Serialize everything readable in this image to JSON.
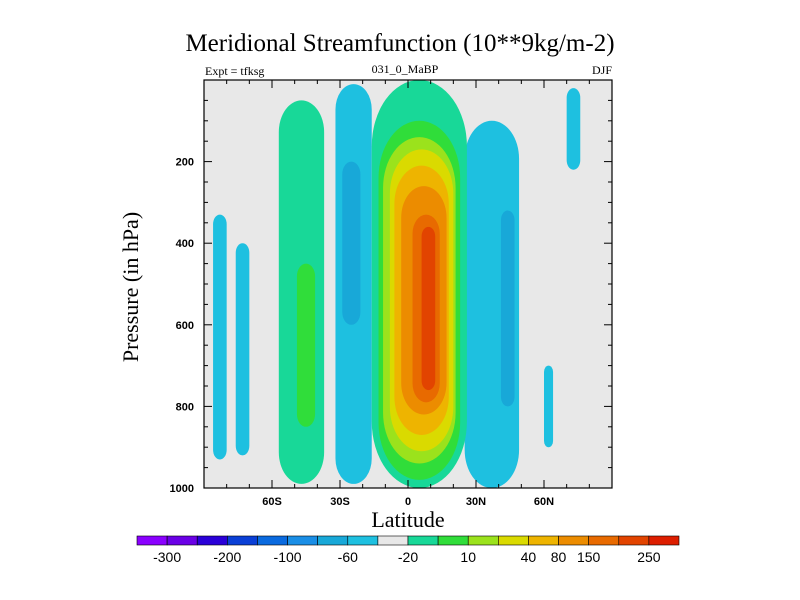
{
  "chart_data": {
    "type": "heatmap",
    "title": "Meridional Streamfunction (10**9kg/m-2)",
    "left_subtitle": "Expt = tfksg",
    "center_subtitle": "031_0_MaBP",
    "right_subtitle": "DJF",
    "xlabel": "Latitude",
    "ylabel": "Pressure (in hPa)",
    "xlim": [
      -90,
      90
    ],
    "ylim": [
      1000,
      0
    ],
    "x_ticks": [
      {
        "value": -60,
        "label": "60S"
      },
      {
        "value": -30,
        "label": "30S"
      },
      {
        "value": 0,
        "label": "0"
      },
      {
        "value": 30,
        "label": "30N"
      },
      {
        "value": 60,
        "label": "60N"
      }
    ],
    "y_ticks": [
      {
        "value": 200,
        "label": "200"
      },
      {
        "value": 400,
        "label": "400"
      },
      {
        "value": 600,
        "label": "600"
      },
      {
        "value": 800,
        "label": "800"
      },
      {
        "value": 1000,
        "label": "1000"
      }
    ],
    "colorbar": {
      "labels": [
        "-300",
        "-200",
        "-100",
        "-60",
        "-20",
        "10",
        "40",
        "80",
        "150",
        "250"
      ],
      "colors": [
        "#8a00ff",
        "#6a00e6",
        "#2a00d8",
        "#0a3fd6",
        "#0a6adf",
        "#1a8ee6",
        "#18a8d8",
        "#1ec0e0",
        "#e8e8e8",
        "#18d898",
        "#30dd3a",
        "#9be21c",
        "#dada00",
        "#eeb400",
        "#ec8c00",
        "#e86a00",
        "#e24400",
        "#dd1e00"
      ]
    },
    "contours": [
      {
        "level": -10,
        "color": "#1ec0e0",
        "center": [
          -83,
          630
        ],
        "half_widths": [
          3,
          300
        ],
        "note": "narrow negative cell near 83S"
      },
      {
        "level": -10,
        "color": "#1ec0e0",
        "center": [
          -73,
          660
        ],
        "half_widths": [
          3,
          260
        ],
        "note": "negative cell near 73S"
      },
      {
        "level": -10,
        "color": "#1ec0e0",
        "center": [
          -24,
          500
        ],
        "half_widths": [
          8,
          490
        ],
        "note": "negative band ~24S"
      },
      {
        "level": -20,
        "color": "#18a8d8",
        "center": [
          -25,
          400
        ],
        "half_widths": [
          4,
          200
        ],
        "note": "inner negative core ~25S"
      },
      {
        "level": 10,
        "color": "#18d898",
        "center": [
          -47,
          520
        ],
        "half_widths": [
          10,
          470
        ],
        "note": "positive band ~47S"
      },
      {
        "level": 40,
        "color": "#30dd3a",
        "center": [
          -45,
          650
        ],
        "half_widths": [
          4,
          200
        ],
        "note": "core ~45S"
      },
      {
        "level": -10,
        "color": "#1ec0e0",
        "center": [
          37,
          550
        ],
        "half_widths": [
          12,
          450
        ],
        "note": "negative cell 30N-50N"
      },
      {
        "level": -20,
        "color": "#18a8d8",
        "center": [
          44,
          560
        ],
        "half_widths": [
          3,
          240
        ],
        "note": "core ~44N"
      },
      {
        "level": -10,
        "color": "#1ec0e0",
        "center": [
          73,
          120
        ],
        "half_widths": [
          3,
          100
        ],
        "note": "upper cell ~73N"
      },
      {
        "level": -10,
        "color": "#1ec0e0",
        "center": [
          62,
          800
        ],
        "half_widths": [
          2,
          100
        ],
        "note": "small cell ~62N"
      },
      {
        "level": 10,
        "color": "#18d898",
        "center": [
          5,
          500
        ],
        "half_widths": [
          21,
          500
        ],
        "note": "Hadley cell outer"
      },
      {
        "level": 40,
        "color": "#30dd3a",
        "center": [
          5,
          540
        ],
        "half_widths": [
          18,
          440
        ],
        "note": "Hadley"
      },
      {
        "level": 80,
        "color": "#9be21c",
        "center": [
          5,
          540
        ],
        "half_widths": [
          16,
          400
        ],
        "note": "Hadley"
      },
      {
        "level": 100,
        "color": "#dada00",
        "center": [
          6,
          540
        ],
        "half_widths": [
          14,
          370
        ],
        "note": "Hadley"
      },
      {
        "level": 120,
        "color": "#eeb400",
        "center": [
          6,
          540
        ],
        "half_widths": [
          12,
          330
        ],
        "note": "Hadley"
      },
      {
        "level": 150,
        "color": "#ec8c00",
        "center": [
          7,
          540
        ],
        "half_widths": [
          10,
          280
        ],
        "note": "Hadley"
      },
      {
        "level": 200,
        "color": "#e86a00",
        "center": [
          8,
          560
        ],
        "half_widths": [
          6,
          230
        ],
        "note": "Hadley"
      },
      {
        "level": 250,
        "color": "#e24400",
        "center": [
          9,
          560
        ],
        "half_widths": [
          3,
          200
        ],
        "note": "Hadley core"
      }
    ]
  }
}
